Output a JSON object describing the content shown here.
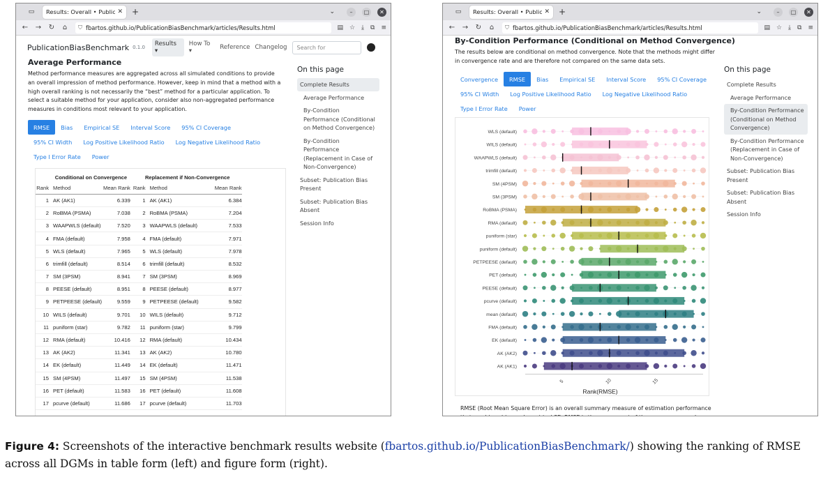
{
  "browser": {
    "tab_title": "Results: Overall • Publication",
    "url": "fbartos.github.io/PublicationBiasBenchmark/articles/Results.html"
  },
  "left": {
    "navbar": {
      "brand": "PublicationBiasBenchmark",
      "version": "0.1.0",
      "items": [
        "Results ▾",
        "How To ▾",
        "Reference",
        "Changelog"
      ],
      "search_placeholder": "Search for"
    },
    "title": "Average Performance",
    "description": "Method performance measures are aggregated across all simulated conditions to provide an overall impression of method performance. However, keep in mind that a method with a high overall ranking is not necessarily the “best” method for a particular application. To select a suitable method for your application, consider also non-aggregated performance measures in conditions most relevant to your application.",
    "tabs": [
      "RMSE",
      "Bias",
      "Empirical SE",
      "Interval Score",
      "95% CI Coverage",
      "95% CI Width",
      "Log Positive Likelihood Ratio",
      "Log Negative Likelihood Ratio",
      "Type I Error Rate",
      "Power"
    ],
    "active_tab": "RMSE",
    "table": {
      "group1": "Conditional on Convergence",
      "group2": "Replacement if Non-Convergence",
      "columns": [
        "Rank",
        "Method",
        "Mean Rank",
        "Rank",
        "Method",
        "Mean Rank"
      ],
      "rows": [
        [
          "1",
          "AK (AK1)",
          "6.339",
          "1",
          "AK (AK1)",
          "6.384"
        ],
        [
          "2",
          "RoBMA (PSMA)",
          "7.038",
          "2",
          "RoBMA (PSMA)",
          "7.204"
        ],
        [
          "3",
          "WAAPWLS (default)",
          "7.520",
          "3",
          "WAAPWLS (default)",
          "7.533"
        ],
        [
          "4",
          "FMA (default)",
          "7.958",
          "4",
          "FMA (default)",
          "7.971"
        ],
        [
          "5",
          "WLS (default)",
          "7.965",
          "5",
          "WLS (default)",
          "7.978"
        ],
        [
          "6",
          "trimfill (default)",
          "8.514",
          "6",
          "trimfill (default)",
          "8.532"
        ],
        [
          "7",
          "SM (3PSM)",
          "8.941",
          "7",
          "SM (3PSM)",
          "8.969"
        ],
        [
          "8",
          "PEESE (default)",
          "8.951",
          "8",
          "PEESE (default)",
          "8.977"
        ],
        [
          "9",
          "PETPEESE (default)",
          "9.559",
          "9",
          "PETPEESE (default)",
          "9.582"
        ],
        [
          "10",
          "WILS (default)",
          "9.701",
          "10",
          "WILS (default)",
          "9.712"
        ],
        [
          "11",
          "puniform (star)",
          "9.782",
          "11",
          "puniform (star)",
          "9.799"
        ],
        [
          "12",
          "RMA (default)",
          "10.416",
          "12",
          "RMA (default)",
          "10.434"
        ],
        [
          "13",
          "AK (AK2)",
          "11.341",
          "13",
          "AK (AK2)",
          "10.780"
        ],
        [
          "14",
          "EK (default)",
          "11.449",
          "14",
          "EK (default)",
          "11.471"
        ],
        [
          "15",
          "SM (4PSM)",
          "11.497",
          "15",
          "SM (4PSM)",
          "11.538"
        ],
        [
          "16",
          "PET (default)",
          "11.583",
          "16",
          "PET (default)",
          "11.608"
        ],
        [
          "17",
          "pcurve (default)",
          "11.686",
          "17",
          "pcurve (default)",
          "11.703"
        ]
      ]
    },
    "toc": {
      "title": "On this page",
      "items": [
        "Complete Results",
        "Average Performance",
        "By-Condition Performance (Conditional on Method Convergence)",
        "By-Condition Performance (Replacement in Case of Non-Convergence)",
        "Subset: Publication Bias Present",
        "Subset: Publication Bias Absent",
        "Session Info"
      ]
    }
  },
  "right": {
    "title": "By-Condition Performance (Conditional on Method Convergence)",
    "description": "The results below are conditional on method convergence. Note that the methods might differ in convergence rate and are therefore not compared on the same data sets.",
    "tabs": [
      "Convergence",
      "RMSE",
      "Bias",
      "Empirical SE",
      "Interval Score",
      "95% CI Coverage",
      "95% CI Width",
      "Log Positive Likelihood Ratio",
      "Log Negative Likelihood Ratio",
      "Type I Error Rate",
      "Power"
    ],
    "active_tab": "RMSE",
    "below_text": "RMSE (Root Mean Square Error) is an overall summary measure of estimation performance that combines bias and empirical SE. RMSE is the square root of the average squared",
    "toc": {
      "title": "On this page",
      "items": [
        "Complete Results",
        "Average Performance",
        "By-Condition Performance (Conditional on Method Convergence)",
        "By-Condition Performance (Replacement in Case of Non-Convergence)",
        "Subset: Publication Bias Present",
        "Subset: Publication Bias Absent",
        "Session Info"
      ]
    }
  },
  "chart_data": {
    "type": "boxplot",
    "xlabel": "Rank(RMSE)",
    "xticks": [
      5,
      10,
      15
    ],
    "xlim": [
      1,
      20
    ],
    "categories": [
      "WLS (default)",
      "WILS (default)",
      "WAAPWLS (default)",
      "trimfill (default)",
      "SM (4PSM)",
      "SM (3PSM)",
      "RoBMA (PSMA)",
      "RMA (default)",
      "puniform (star)",
      "puniform (default)",
      "PETPEESE (default)",
      "PET (default)",
      "PEESE (default)",
      "pcurve (default)",
      "mean (default)",
      "FMA (default)",
      "EK (default)",
      "AK (AK2)",
      "AK (AK1)"
    ],
    "colors": [
      "#f8bfe0",
      "#f9c4dd",
      "#f5c2d4",
      "#f6c8c0",
      "#f1b79c",
      "#efc0a6",
      "#c4a13a",
      "#bfae44",
      "#b7bd4c",
      "#9fbd58",
      "#5ba86a",
      "#3e9a6c",
      "#3b9473",
      "#2f8a7a",
      "#2e7f84",
      "#356e8c",
      "#3a5e8f",
      "#3f4e8c",
      "#4a3b80"
    ],
    "q1": [
      6,
      6,
      5,
      6,
      7,
      7,
      1,
      5,
      6,
      9,
      7,
      7,
      6,
      6,
      11,
      5,
      5,
      5,
      3
    ],
    "median": [
      8,
      10,
      5,
      7,
      12,
      8,
      7,
      8,
      11,
      13,
      10,
      11,
      9,
      12,
      16,
      9,
      11,
      10,
      6
    ],
    "q3": [
      12,
      14,
      11,
      12,
      17,
      14,
      13,
      16,
      16,
      18,
      15,
      16,
      15,
      18,
      19,
      15,
      16,
      18,
      14
    ]
  }
}
